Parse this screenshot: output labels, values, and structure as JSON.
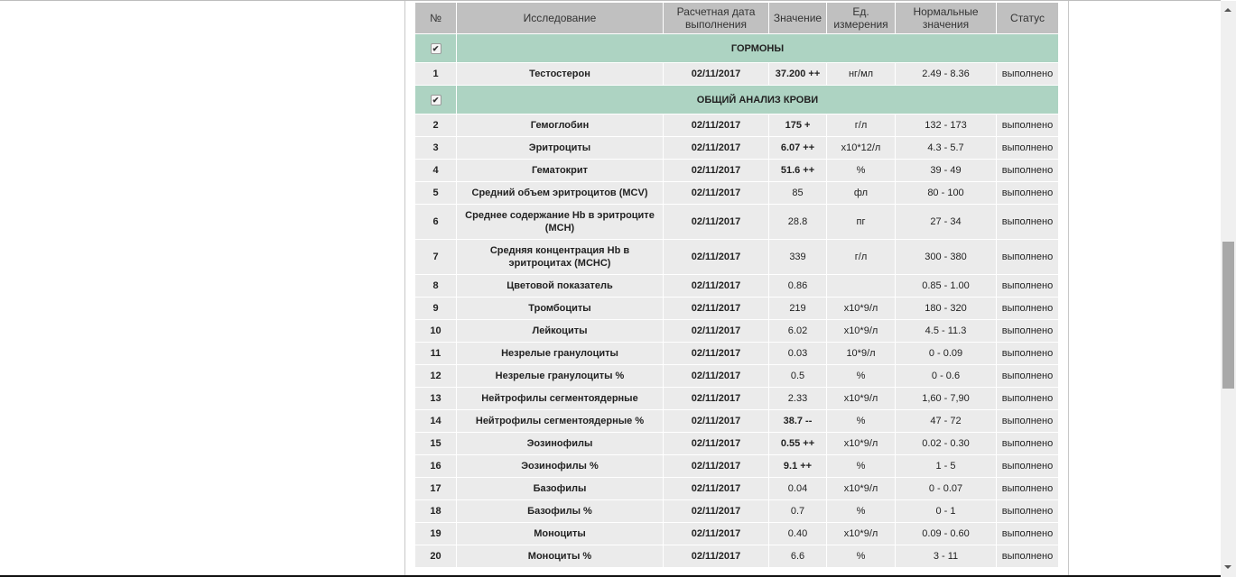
{
  "columns": [
    "№",
    "Исследование",
    "Расчетная дата выполнения",
    "Значение",
    "Ед. измерения",
    "Нормальные значения",
    "Статус"
  ],
  "colors": {
    "header_bg": "#c0c0c0",
    "group_bg": "#add3c2",
    "row_bg": "#ebebeb"
  },
  "groups": [
    {
      "title": "ГОРМОНЫ",
      "checked": true,
      "rows": [
        {
          "n": "1",
          "name": "Тестостерон",
          "date": "02/11/2017",
          "value": "37.200 ++",
          "unit": "нг/мл",
          "range": "2.49 - 8.36",
          "status": "выполнено",
          "abnormal": true
        }
      ]
    },
    {
      "title": "ОБЩИЙ АНАЛИЗ КРОВИ",
      "checked": true,
      "rows": [
        {
          "n": "2",
          "name": "Гемоглобин",
          "date": "02/11/2017",
          "value": "175 +",
          "unit": "г/л",
          "range": "132 - 173",
          "status": "выполнено",
          "abnormal": true
        },
        {
          "n": "3",
          "name": "Эритроциты",
          "date": "02/11/2017",
          "value": "6.07 ++",
          "unit": "x10*12/л",
          "range": "4.3 - 5.7",
          "status": "выполнено",
          "abnormal": true
        },
        {
          "n": "4",
          "name": "Гематокрит",
          "date": "02/11/2017",
          "value": "51.6 ++",
          "unit": "%",
          "range": "39 - 49",
          "status": "выполнено",
          "abnormal": true
        },
        {
          "n": "5",
          "name": "Средний объем эритроцитов (MCV)",
          "date": "02/11/2017",
          "value": "85",
          "unit": "фл",
          "range": "80 - 100",
          "status": "выполнено",
          "abnormal": false
        },
        {
          "n": "6",
          "name": "Среднее содержание Hb в эритроците (MCH)",
          "date": "02/11/2017",
          "value": "28.8",
          "unit": "пг",
          "range": "27 - 34",
          "status": "выполнено",
          "abnormal": false
        },
        {
          "n": "7",
          "name": "Средняя концентрация Hb в эритроцитах (MCHC)",
          "date": "02/11/2017",
          "value": "339",
          "unit": "г/л",
          "range": "300 - 380",
          "status": "выполнено",
          "abnormal": false
        },
        {
          "n": "8",
          "name": "Цветовой показатель",
          "date": "02/11/2017",
          "value": "0.86",
          "unit": "",
          "range": "0.85 - 1.00",
          "status": "выполнено",
          "abnormal": false
        },
        {
          "n": "9",
          "name": "Тромбоциты",
          "date": "02/11/2017",
          "value": "219",
          "unit": "x10*9/л",
          "range": "180 - 320",
          "status": "выполнено",
          "abnormal": false
        },
        {
          "n": "10",
          "name": "Лейкоциты",
          "date": "02/11/2017",
          "value": "6.02",
          "unit": "x10*9/л",
          "range": "4.5 - 11.3",
          "status": "выполнено",
          "abnormal": false
        },
        {
          "n": "11",
          "name": "Незрелые гранулоциты",
          "date": "02/11/2017",
          "value": "0.03",
          "unit": "10*9/л",
          "range": "0 - 0.09",
          "status": "выполнено",
          "abnormal": false
        },
        {
          "n": "12",
          "name": "Незрелые гранулоциты %",
          "date": "02/11/2017",
          "value": "0.5",
          "unit": "%",
          "range": "0 - 0.6",
          "status": "выполнено",
          "abnormal": false
        },
        {
          "n": "13",
          "name": "Нейтрофилы сегментоядерные",
          "date": "02/11/2017",
          "value": "2.33",
          "unit": "x10*9/л",
          "range": "1,60 - 7,90",
          "status": "выполнено",
          "abnormal": false
        },
        {
          "n": "14",
          "name": "Нейтрофилы сегментоядерные %",
          "date": "02/11/2017",
          "value": "38.7 --",
          "unit": "%",
          "range": "47 - 72",
          "status": "выполнено",
          "abnormal": true
        },
        {
          "n": "15",
          "name": "Эозинофилы",
          "date": "02/11/2017",
          "value": "0.55 ++",
          "unit": "x10*9/л",
          "range": "0.02 - 0.30",
          "status": "выполнено",
          "abnormal": true
        },
        {
          "n": "16",
          "name": "Эозинофилы %",
          "date": "02/11/2017",
          "value": "9.1 ++",
          "unit": "%",
          "range": "1 - 5",
          "status": "выполнено",
          "abnormal": true
        },
        {
          "n": "17",
          "name": "Базофилы",
          "date": "02/11/2017",
          "value": "0.04",
          "unit": "x10*9/л",
          "range": "0 - 0.07",
          "status": "выполнено",
          "abnormal": false
        },
        {
          "n": "18",
          "name": "Базофилы %",
          "date": "02/11/2017",
          "value": "0.7",
          "unit": "%",
          "range": "0 - 1",
          "status": "выполнено",
          "abnormal": false
        },
        {
          "n": "19",
          "name": "Моноциты",
          "date": "02/11/2017",
          "value": "0.40",
          "unit": "x10*9/л",
          "range": "0.09 - 0.60",
          "status": "выполнено",
          "abnormal": false
        },
        {
          "n": "20",
          "name": "Моноциты %",
          "date": "02/11/2017",
          "value": "6.6",
          "unit": "%",
          "range": "3 - 11",
          "status": "выполнено",
          "abnormal": false
        }
      ]
    }
  ]
}
